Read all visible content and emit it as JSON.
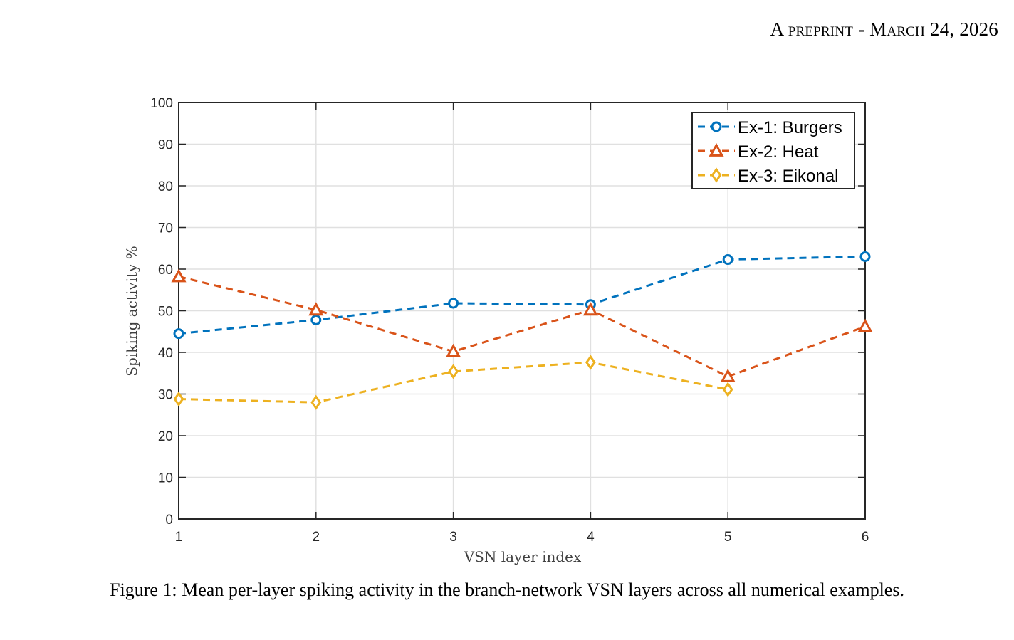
{
  "header": {
    "running_title": "A preprint - March 24, 2026"
  },
  "caption": "Figure 1: Mean per-layer spiking activity in the branch-network VSN layers across all numerical examples.",
  "chart_data": {
    "type": "line",
    "title": "",
    "xlabel": "VSN layer index",
    "ylabel": "Spiking activity %",
    "x": [
      1,
      2,
      3,
      4,
      5,
      6
    ],
    "xlim": [
      1,
      6
    ],
    "ylim": [
      0,
      100
    ],
    "xticks": [
      1,
      2,
      3,
      4,
      5,
      6
    ],
    "yticks": [
      0,
      10,
      20,
      30,
      40,
      50,
      60,
      70,
      80,
      90,
      100
    ],
    "grid": true,
    "legend_position": "top-right",
    "series": [
      {
        "name": "Ex-1: Burgers",
        "values": [
          44.5,
          47.8,
          51.8,
          51.5,
          62.3,
          63.0
        ],
        "color": "#0072BD",
        "marker": "circle",
        "line_style": "dashed"
      },
      {
        "name": "Ex-2: Heat",
        "values": [
          58.2,
          50.2,
          40.2,
          50.2,
          34.2,
          46.2
        ],
        "color": "#D95319",
        "marker": "triangle",
        "line_style": "dashed"
      },
      {
        "name": "Ex-3: Eikonal",
        "values": [
          28.8,
          28.0,
          35.4,
          37.6,
          31.1,
          null
        ],
        "color": "#EDB120",
        "marker": "diamond",
        "line_style": "dashed"
      }
    ]
  }
}
